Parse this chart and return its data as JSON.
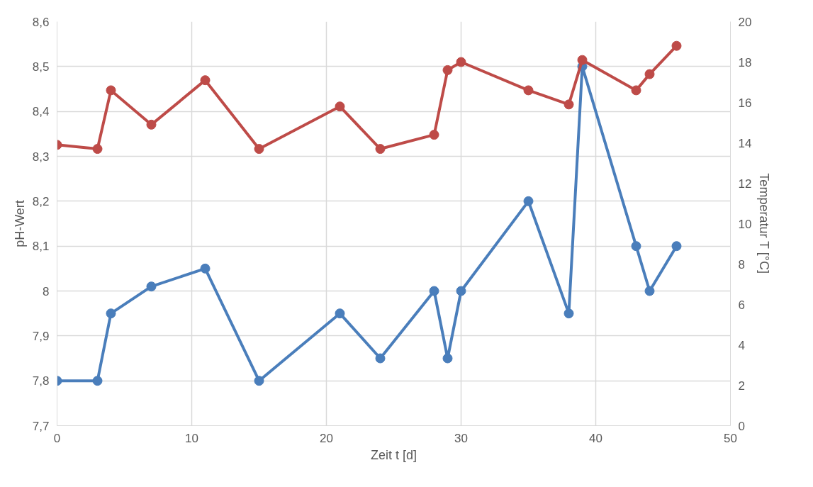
{
  "chart_data": {
    "type": "line",
    "xlabel": "Zeit t [d]",
    "ylabel": "pH-Wert",
    "y2label": "Temperatur T [°C]",
    "xlim": [
      0,
      50
    ],
    "xticks": [
      0,
      10,
      20,
      30,
      40,
      50
    ],
    "ylim": [
      7.7,
      8.6
    ],
    "yticks": [
      {
        "value": 7.7,
        "label": "7,7"
      },
      {
        "value": 7.8,
        "label": "7,8"
      },
      {
        "value": 7.9,
        "label": "7,9"
      },
      {
        "value": 8,
        "label": "8"
      },
      {
        "value": 8.1,
        "label": "8,1"
      },
      {
        "value": 8.2,
        "label": "8,2"
      },
      {
        "value": 8.3,
        "label": "8,3"
      },
      {
        "value": 8.4,
        "label": "8,4"
      },
      {
        "value": 8.5,
        "label": "8,5"
      },
      {
        "value": 8.6,
        "label": "8,6"
      }
    ],
    "y2lim": [
      0,
      20
    ],
    "y2ticks": [
      0,
      2,
      4,
      6,
      8,
      10,
      12,
      14,
      16,
      18,
      20
    ],
    "grid": true,
    "marker": "circle",
    "line_style": "solid",
    "series": [
      {
        "color": "#4a7ebb",
        "x": [
          0,
          3,
          4,
          7,
          11,
          15,
          21,
          24,
          28,
          29,
          30,
          35,
          38,
          39,
          43,
          44,
          46
        ],
        "values": [
          7.8,
          7.8,
          7.95,
          8.01,
          8.05,
          7.8,
          7.95,
          7.85,
          8.0,
          7.85,
          8.0,
          8.2,
          7.95,
          8.5,
          8.1,
          8.0,
          8.1
        ]
      },
      {
        "color": "#be4b48",
        "axis": "y2",
        "x": [
          0,
          3,
          4,
          7,
          11,
          15,
          21,
          24,
          28,
          29,
          30,
          35,
          38,
          39,
          43,
          44,
          46
        ],
        "values": [
          13.9,
          13.7,
          16.6,
          14.9,
          17.1,
          13.7,
          15.8,
          13.7,
          14.4,
          17.6,
          18.0,
          16.6,
          15.9,
          18.1,
          16.6,
          17.4,
          18.8
        ]
      }
    ]
  }
}
